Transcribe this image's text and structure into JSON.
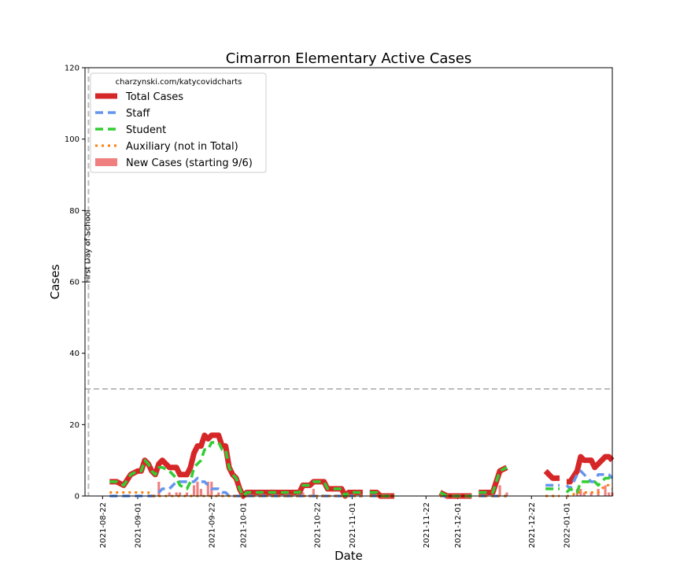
{
  "chart_data": {
    "type": "line",
    "title": "Cimarron Elementary Active Cases",
    "x_label": "Date",
    "y_label": "Cases",
    "legend_title": "charzynski.com/katycovidcharts",
    "legend": "upper left",
    "x": [
      "2021-08-24",
      "2021-08-26",
      "2021-08-28",
      "2021-08-30",
      "2021-09-01",
      "2021-09-02",
      "2021-09-03",
      "2021-09-04",
      "2021-09-05",
      "2021-09-06",
      "2021-09-07",
      "2021-09-08",
      "2021-09-10",
      "2021-09-12",
      "2021-09-13",
      "2021-09-15",
      "2021-09-16",
      "2021-09-17",
      "2021-09-18",
      "2021-09-19",
      "2021-09-20",
      "2021-09-21",
      "2021-09-22",
      "2021-09-24",
      "2021-09-25",
      "2021-09-26",
      "2021-09-27",
      "2021-09-28",
      "2021-09-29",
      "2021-09-30",
      "2021-10-01",
      "2021-10-02",
      "2021-10-09",
      "2021-10-15",
      "2021-10-17",
      "2021-10-18",
      "2021-10-20",
      "2021-10-21",
      "2021-10-24",
      "2021-10-25",
      "2021-10-29",
      "2021-10-30",
      "2021-10-31",
      "2021-11-04",
      "2021-11-05",
      "2021-11-06",
      "2021-11-08",
      "2021-11-09",
      "2021-11-13",
      "2021-11-14",
      "2021-11-26",
      "2021-11-28",
      "2021-12-05",
      "2021-12-06",
      "2021-12-07",
      "2021-12-11",
      "2021-12-13",
      "2021-12-15",
      "2021-12-16",
      "2021-12-26",
      "2021-12-28",
      "2021-12-30",
      "2021-12-31",
      "2022-01-01",
      "2022-01-02",
      "2022-01-04",
      "2022-01-05",
      "2022-01-06",
      "2022-01-08",
      "2022-01-09",
      "2022-01-10",
      "2022-01-12",
      "2022-01-13",
      "2022-01-14"
    ],
    "series": [
      {
        "name": "New Cases (starting 9/6)",
        "type": "bar",
        "color": "#f08080",
        "values": [
          null,
          null,
          null,
          null,
          null,
          null,
          null,
          null,
          null,
          null,
          4,
          null,
          1,
          1,
          1,
          1,
          null,
          3,
          4,
          2,
          null,
          4,
          4,
          1,
          null,
          null,
          null,
          null,
          null,
          null,
          null,
          null,
          null,
          null,
          null,
          1,
          null,
          2,
          null,
          null,
          null,
          null,
          null,
          null,
          null,
          null,
          null,
          null,
          null,
          null,
          null,
          null,
          null,
          null,
          null,
          null,
          3,
          1,
          null,
          null,
          null,
          null,
          null,
          null,
          null,
          2,
          2,
          1,
          1,
          null,
          2,
          3,
          1,
          1
        ]
      },
      {
        "name": "Total Cases",
        "type": "line",
        "style": "solid",
        "color": "#d62728",
        "values": [
          4,
          4,
          3,
          6,
          7,
          7,
          10,
          9,
          7,
          6,
          9,
          10,
          8,
          8,
          6,
          6,
          8,
          12,
          14,
          14,
          17,
          16,
          17,
          17,
          14,
          14,
          8,
          6,
          5,
          2,
          0,
          1,
          1,
          1,
          1,
          3,
          3,
          4,
          4,
          2,
          2,
          0,
          1,
          1,
          null,
          1,
          1,
          0,
          0,
          null,
          1,
          0,
          0,
          null,
          1,
          1,
          7,
          8,
          null,
          7,
          5,
          5,
          null,
          4,
          4,
          7,
          11,
          10,
          10,
          8,
          9,
          11,
          11,
          10
        ]
      },
      {
        "name": "Staff",
        "type": "line",
        "style": "dashed",
        "color": "#6495ed",
        "values": [
          0,
          0,
          0,
          0,
          0,
          0,
          0,
          0,
          0,
          0,
          1,
          2,
          2,
          4,
          4,
          4,
          4,
          4,
          5,
          4,
          4,
          3,
          2,
          2,
          1,
          1,
          0,
          0,
          0,
          0,
          0,
          0,
          0,
          0,
          0,
          0,
          0,
          0,
          0,
          0,
          0,
          0,
          0,
          0,
          null,
          0,
          0,
          0,
          0,
          null,
          0,
          0,
          0,
          null,
          0,
          0,
          0,
          0,
          null,
          3,
          3,
          3,
          null,
          3,
          2,
          6,
          7,
          6,
          4,
          4,
          6,
          6,
          6,
          5
        ]
      },
      {
        "name": "Student",
        "type": "line",
        "style": "dashed",
        "color": "#32cd32",
        "values": [
          4,
          4,
          3,
          6,
          7,
          7,
          10,
          9,
          7,
          6,
          8,
          8,
          7,
          5,
          3,
          2,
          4,
          8,
          9,
          10,
          13,
          13,
          15,
          15,
          13,
          13,
          8,
          6,
          5,
          2,
          0,
          1,
          1,
          1,
          1,
          3,
          3,
          4,
          4,
          2,
          2,
          0,
          1,
          1,
          null,
          1,
          1,
          0,
          0,
          null,
          1,
          0,
          0,
          null,
          1,
          1,
          7,
          8,
          null,
          2,
          2,
          2,
          null,
          1,
          2,
          1,
          4,
          4,
          4,
          4,
          3,
          5,
          5,
          6
        ]
      },
      {
        "name": "Auxiliary (not in Total)",
        "type": "line",
        "style": "dotted",
        "color": "#ff7f0e",
        "values": [
          1,
          1,
          1,
          1,
          1,
          1,
          1,
          1,
          0,
          0,
          0,
          0,
          0,
          0,
          0,
          0,
          0,
          0,
          0,
          0,
          0,
          0,
          0,
          0,
          0,
          0,
          0,
          0,
          0,
          0,
          0,
          0,
          0,
          0,
          0,
          0,
          0,
          0,
          0,
          0,
          0,
          0,
          0,
          0,
          null,
          0,
          0,
          0,
          0,
          null,
          0,
          0,
          0,
          null,
          0,
          0,
          0,
          0,
          null,
          0,
          0,
          0,
          null,
          0,
          0,
          1,
          1,
          1,
          1,
          1,
          1,
          3,
          3,
          2
        ]
      }
    ],
    "xlim": [
      "2021-08-17",
      "2022-01-14"
    ],
    "xticks": [
      "2021-08-22",
      "2021-09-01",
      "2021-09-22",
      "2021-10-01",
      "2021-10-22",
      "2021-11-01",
      "2021-11-22",
      "2021-12-01",
      "2021-12-22",
      "2022-01-01"
    ],
    "ylim": [
      0,
      120
    ],
    "yticks": [
      0,
      20,
      40,
      60,
      80,
      100,
      120
    ],
    "hlines": [
      {
        "value": 30
      }
    ],
    "vlines": [
      {
        "x": "2021-08-18",
        "label": "First Day of School"
      }
    ]
  }
}
